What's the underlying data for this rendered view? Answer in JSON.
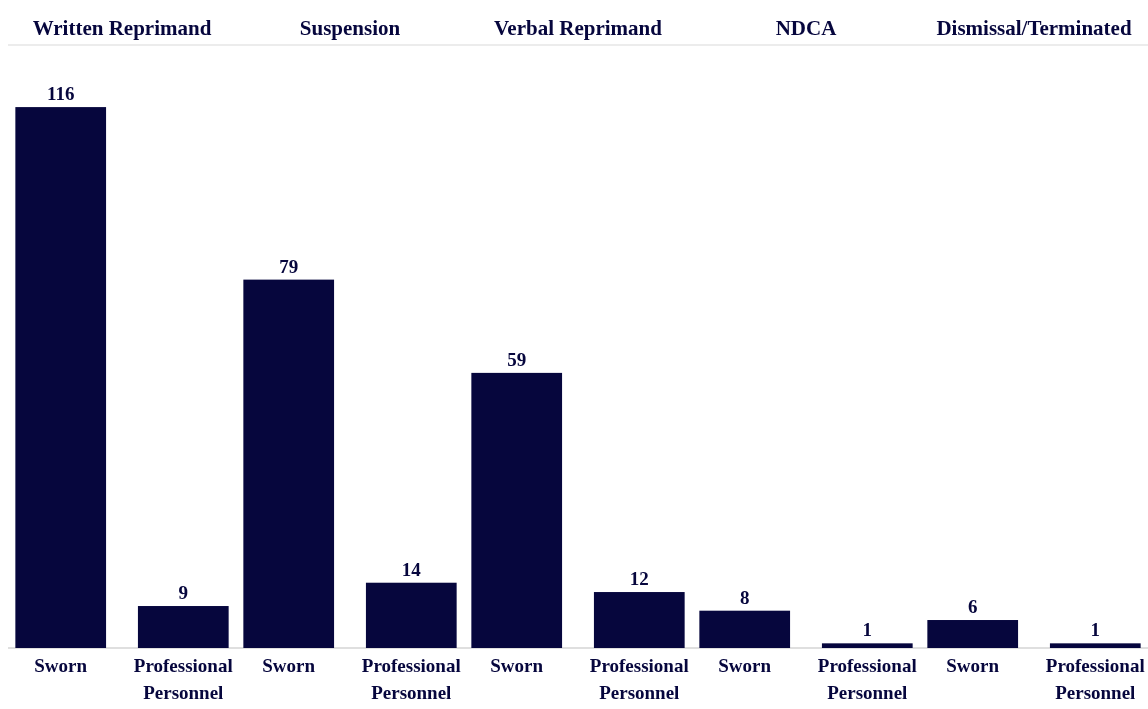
{
  "chart_data": [
    {
      "type": "bar",
      "title": "Written Reprimand",
      "categories": [
        "Sworn",
        "Professional Personnel"
      ],
      "values": [
        116,
        9
      ],
      "color": "#06063d",
      "data_labels": true
    },
    {
      "type": "bar",
      "title": "Suspension",
      "categories": [
        "Sworn",
        "Professional Personnel"
      ],
      "values": [
        79,
        14
      ],
      "color": "#06063d",
      "data_labels": true
    },
    {
      "type": "bar",
      "title": "Verbal Reprimand",
      "categories": [
        "Sworn",
        "Professional Personnel"
      ],
      "values": [
        59,
        12
      ],
      "color": "#06063d",
      "data_labels": true
    },
    {
      "type": "bar",
      "title": "NDCA",
      "categories": [
        "Sworn",
        "Professional Personnel"
      ],
      "values": [
        8,
        1
      ],
      "color": "#06063d",
      "data_labels": true
    },
    {
      "type": "bar",
      "title": "Dismissal/Terminated",
      "categories": [
        "Sworn",
        "Professional Personnel"
      ],
      "values": [
        6,
        1
      ],
      "color": "#06063d",
      "data_labels": true
    }
  ]
}
